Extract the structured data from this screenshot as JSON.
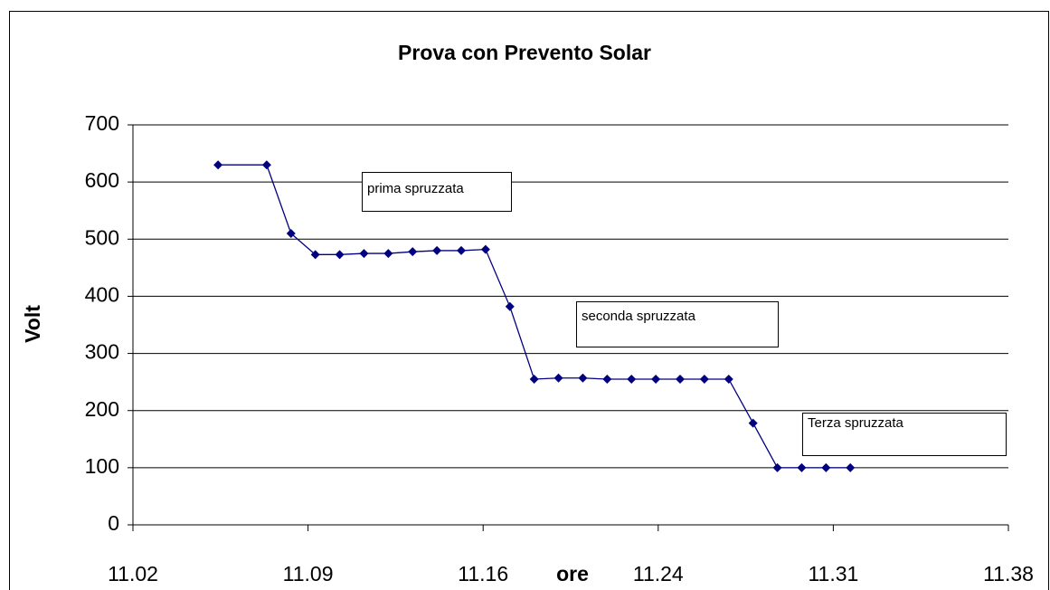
{
  "chart_data": {
    "type": "line",
    "title": "Prova con Prevento Solar",
    "xlabel": "ore",
    "ylabel": "Volt",
    "x": [
      5.5,
      7.5,
      8.5,
      9.5,
      10.5,
      11.5,
      12.5,
      13.5,
      14.5,
      15.5,
      16.5,
      17.5,
      18.5,
      19.5,
      20.5,
      21.5,
      22.5,
      23.5,
      24.5,
      25.5,
      26.5,
      27.5,
      28.5,
      29.5,
      30.5,
      31.5
    ],
    "series": [
      {
        "color": "#000080",
        "values": [
          630,
          630,
          510,
          473,
          473,
          475,
          475,
          478,
          480,
          480,
          482,
          382,
          255,
          257,
          257,
          255,
          255,
          255,
          255,
          255,
          255,
          178,
          100,
          100,
          100,
          100
        ]
      }
    ],
    "xlim": [
      2,
      38
    ],
    "xticks": [
      {
        "value": 2,
        "label": "11.02"
      },
      {
        "value": 9.2,
        "label": "11.09"
      },
      {
        "value": 16.4,
        "label": "11.16"
      },
      {
        "value": 23.6,
        "label": "11.24"
      },
      {
        "value": 30.8,
        "label": "11.31"
      },
      {
        "value": 38,
        "label": "11.38"
      }
    ],
    "ylim": [
      0,
      700
    ],
    "yticks": [
      0,
      100,
      200,
      300,
      400,
      500,
      600,
      700
    ],
    "grid": true,
    "annotations": [
      "prima spruzzata",
      "seconda spruzzata",
      "Terza spruzzata"
    ]
  }
}
